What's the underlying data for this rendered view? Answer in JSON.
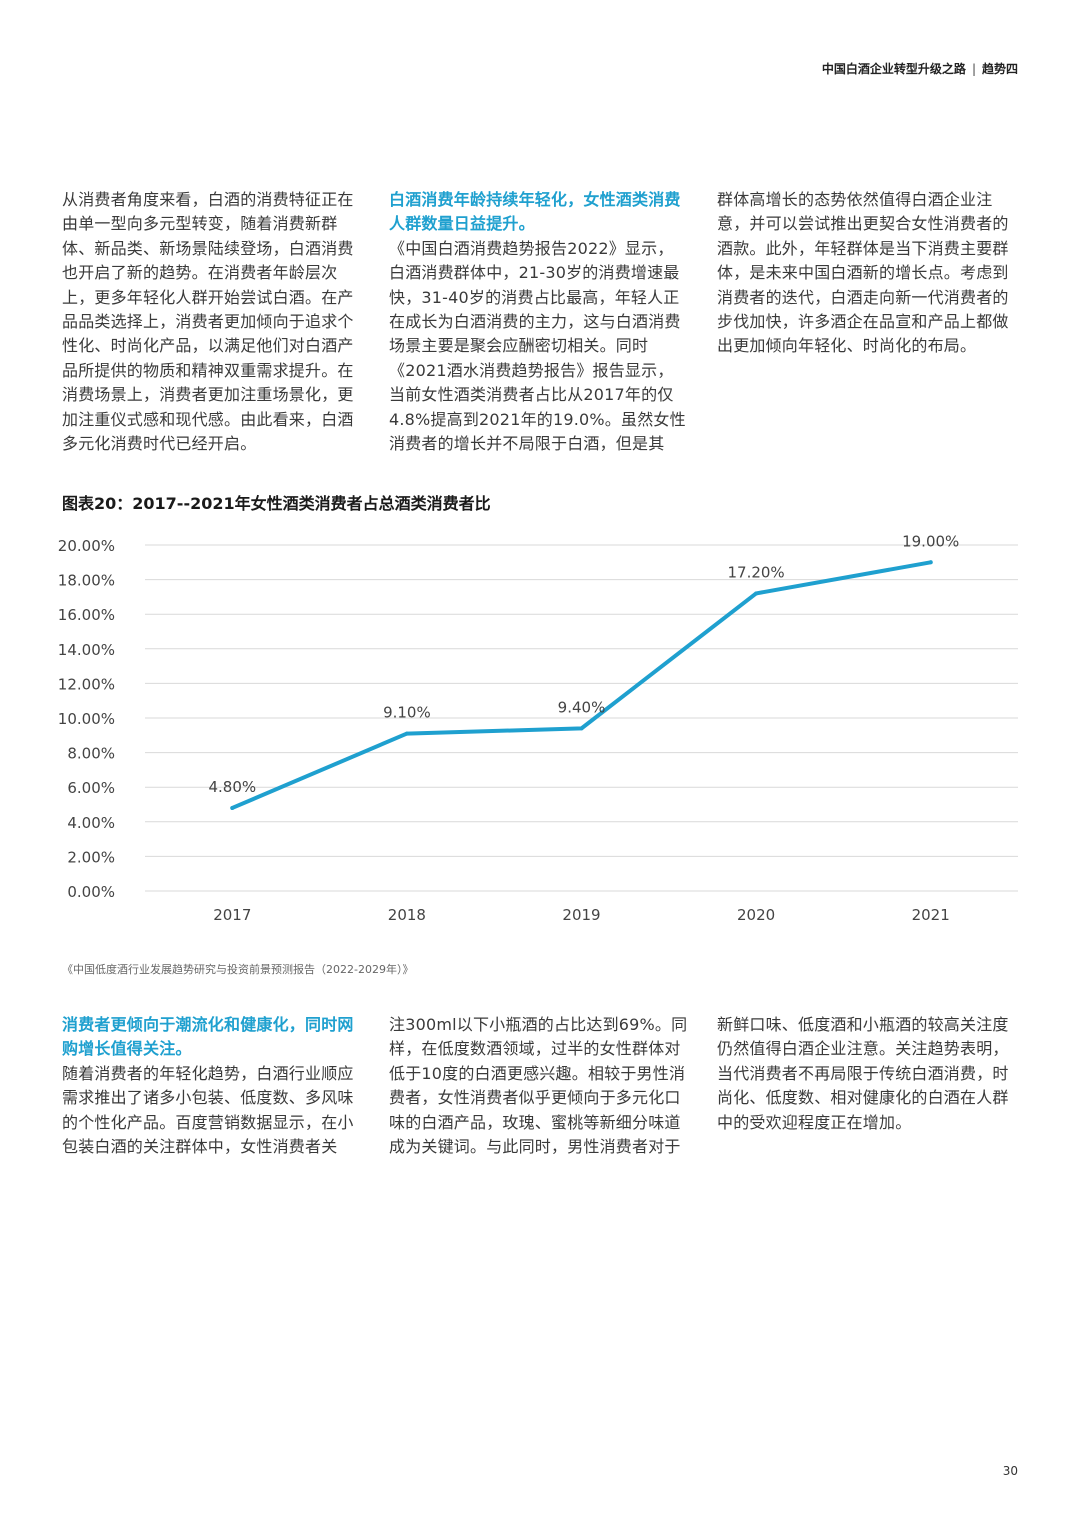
{
  "header": {
    "title": "中国白酒企业转型升级之路",
    "section": "趋势四"
  },
  "top_columns": {
    "col1": "从消费者角度来看，白酒的消费特征正在由单一型向多元型转变，随着消费新群体、新品类、新场景陆续登场，白酒消费也开启了新的趋势。在消费者年龄层次上，更多年轻化人群开始尝试白酒。在产品品类选择上，消费者更加倾向于追求个性化、时尚化产品，以满足他们对白酒产品所提供的物质和精神双重需求提升。在消费场景上，消费者更加注重场景化，更加注重仪式感和现代感。由此看来，白酒多元化消费时代已经开启。",
    "col2_heading": "白酒消费年龄持续年轻化，女性酒类消费人群数量日益提升。",
    "col2": "《中国白酒消费趋势报告2022》显示，白酒消费群体中，21-30岁的消费增速最快，31-40岁的消费占比最高，年轻人正在成长为白酒消费的主力，这与白酒消费场景主要是聚会应酬密切相关。同时《2021酒水消费趋势报告》报告显示，当前女性酒类消费者占比从2017年的仅4.8%提高到2021年的19.0%。虽然女性消费者的增长并不局限于白酒，但是其",
    "col3": "群体高增长的态势依然值得白酒企业注意，并可以尝试推出更契合女性消费者的酒款。此外，年轻群体是当下消费主要群体，是未来中国白酒新的增长点。考虑到消费者的迭代，白酒走向新一代消费者的步伐加快，许多酒企在品宣和产品上都做出更加倾向年轻化、时尚化的布局。"
  },
  "chart_title": "图表20：2017--2021年女性酒类消费者占总酒类消费者比",
  "chart_data": {
    "type": "line",
    "title": "图表20：2017--2021年女性酒类消费者占总酒类消费者比",
    "categories": [
      "2017",
      "2018",
      "2019",
      "2020",
      "2021"
    ],
    "series": [
      {
        "values": [
          4.8,
          9.1,
          9.4,
          17.2,
          19.0
        ],
        "labels": [
          "4.80%",
          "9.10%",
          "9.40%",
          "17.20%",
          "19.00%"
        ],
        "color": "#1fa0cf"
      }
    ],
    "yticks": [
      "0.00%",
      "2.00%",
      "4.00%",
      "6.00%",
      "8.00%",
      "10.00%",
      "12.00%",
      "14.00%",
      "16.00%",
      "18.00%",
      "20.00%"
    ],
    "ylim": [
      0,
      20
    ],
    "grid": true,
    "gridColor": "#d9d9d9"
  },
  "source": "《中国低度酒行业发展趋势研究与投资前景预测报告（2022-2029年）》",
  "bottom_columns": {
    "col1_heading": "消费者更倾向于潮流化和健康化，同时网购增长值得关注。",
    "col1": "随着消费者的年轻化趋势，白酒行业顺应需求推出了诸多小包装、低度数、多风味的个性化产品。百度营销数据显示，在小包装白酒的关注群体中，女性消费者关",
    "col2": "注300ml以下小瓶酒的占比达到69%。同样，在低度数酒领域，过半的女性群体对低于10度的白酒更感兴趣。相较于男性消费者，女性消费者似乎更倾向于多元化口味的白酒产品，玫瑰、蜜桃等新细分味道成为关键词。与此同时，男性消费者对于",
    "col3": "新鲜口味、低度酒和小瓶酒的较高关注度仍然值得白酒企业注意。关注趋势表明，当代消费者不再局限于传统白酒消费，时尚化、低度数、相对健康化的白酒在人群中的受欢迎程度正在增加。"
  },
  "page_number": "30"
}
